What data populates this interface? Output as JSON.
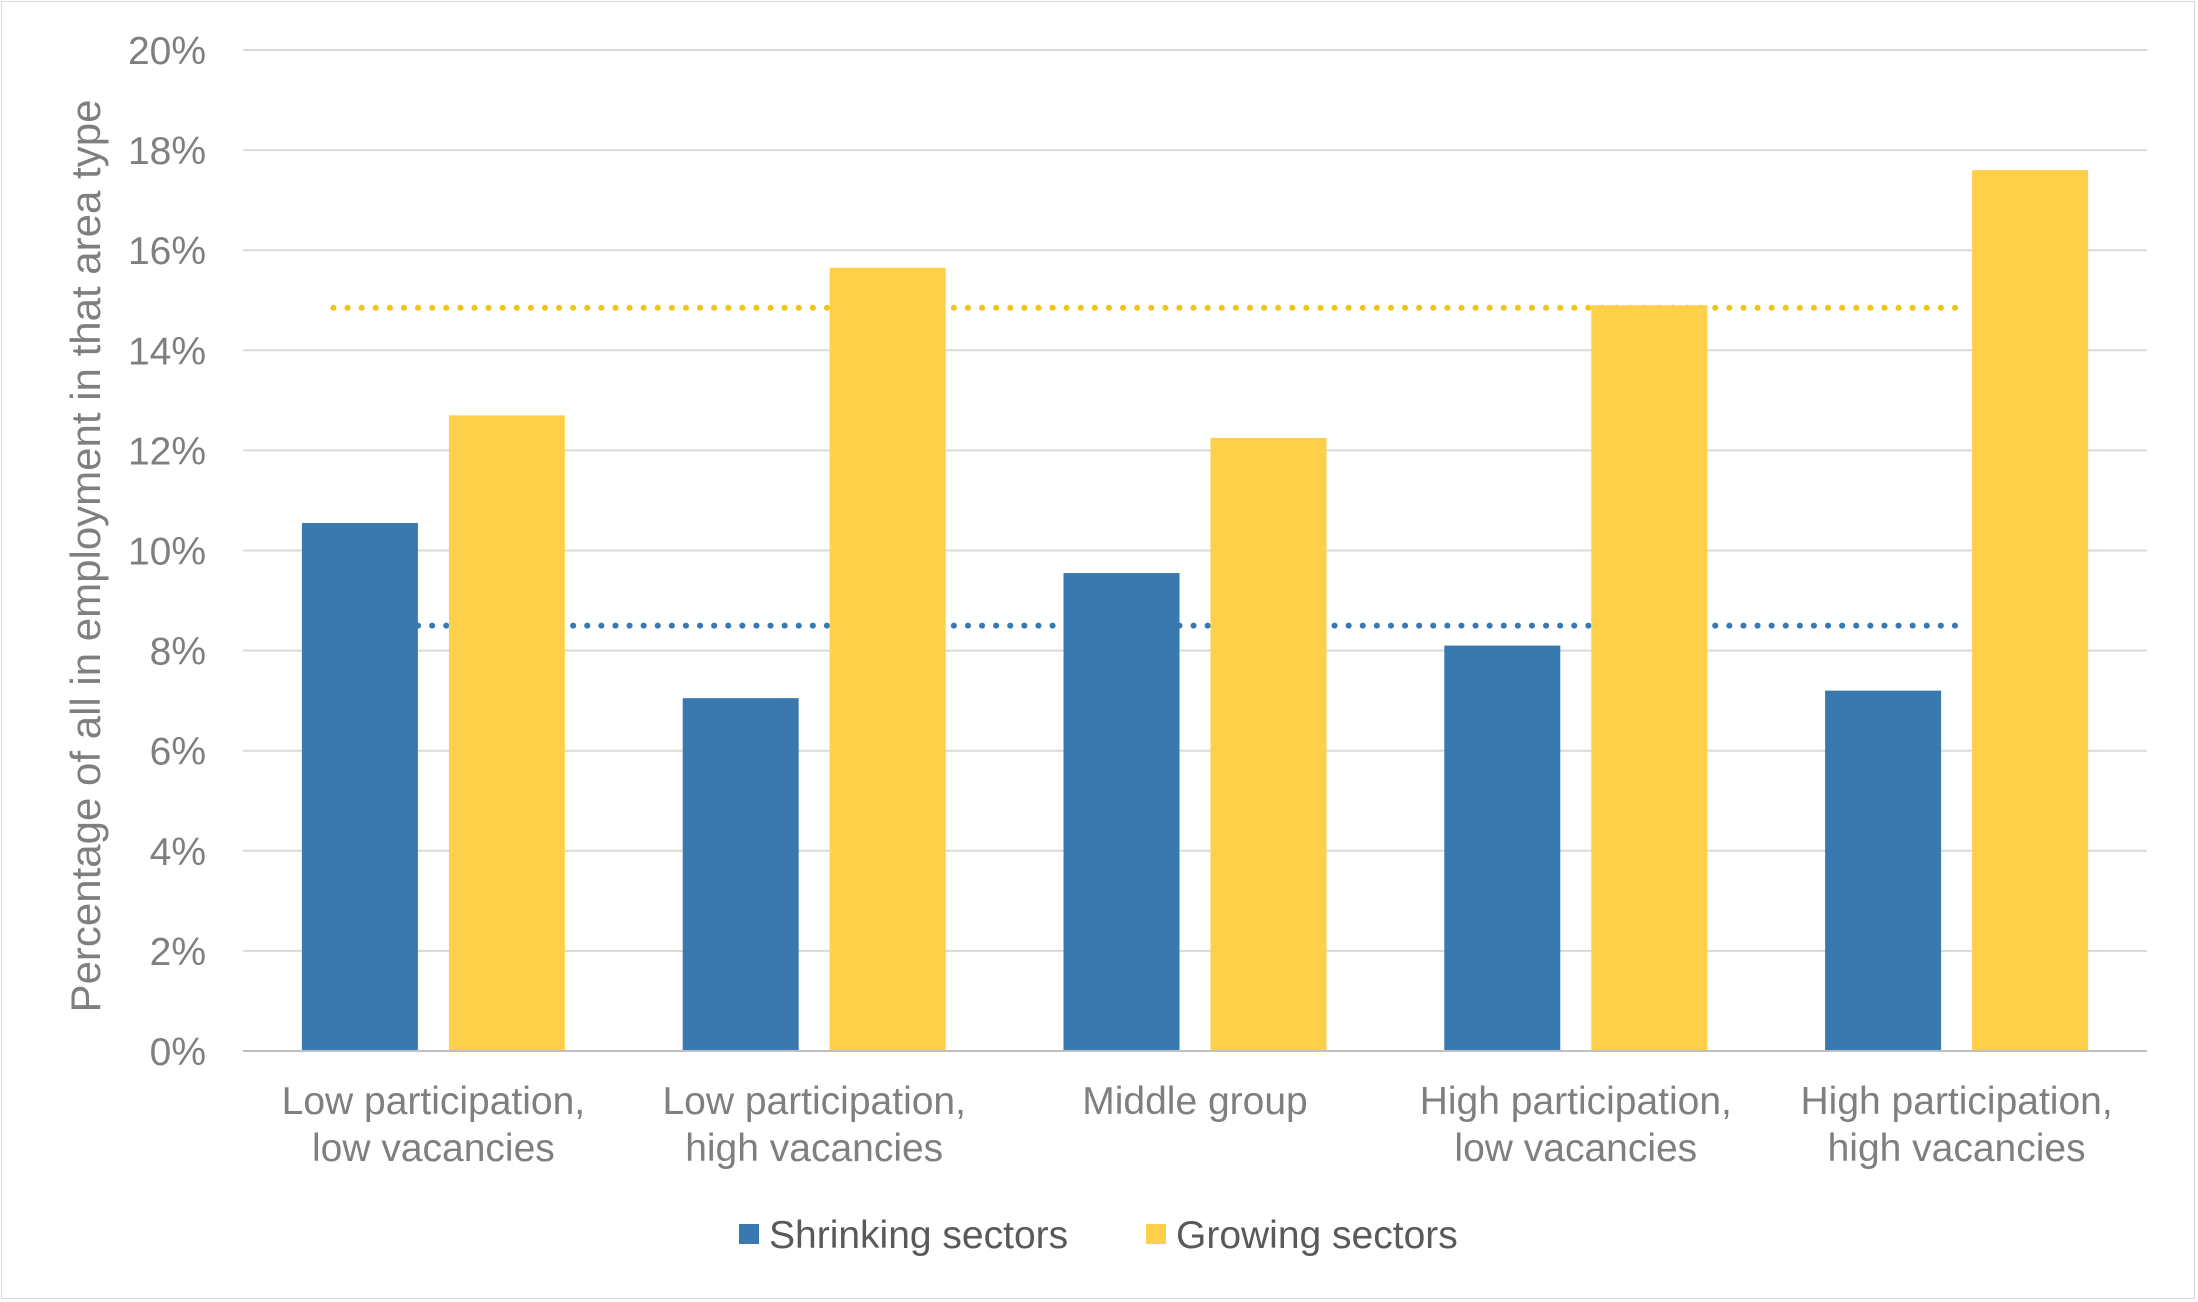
{
  "chart_data": {
    "type": "bar",
    "title": "",
    "xlabel": "",
    "ylabel": "Percentage of all in employment in that area type",
    "ylim": [
      0,
      20
    ],
    "y_ticks": [
      "0%",
      "2%",
      "4%",
      "6%",
      "8%",
      "10%",
      "12%",
      "14%",
      "16%",
      "18%",
      "20%"
    ],
    "grid": true,
    "legend_position": "bottom",
    "categories": [
      [
        "Low participation,",
        "low vacancies"
      ],
      [
        "Low participation,",
        "high vacancies"
      ],
      [
        "Middle group"
      ],
      [
        "High participation,",
        "low vacancies"
      ],
      [
        "High participation,",
        "high vacancies"
      ]
    ],
    "series": [
      {
        "name": "Shrinking sectors",
        "color": "#3a79b0",
        "values": [
          10.55,
          7.05,
          9.55,
          8.1,
          7.2
        ]
      },
      {
        "name": "Growing sectors",
        "color": "#fecf48",
        "values": [
          12.7,
          15.65,
          12.25,
          14.9,
          17.6
        ]
      }
    ],
    "reference_lines": [
      {
        "series": "Shrinking sectors",
        "value": 8.5,
        "color": "#3a79b0",
        "style": "dotted"
      },
      {
        "series": "Growing sectors",
        "value": 14.85,
        "color": "#f2c319",
        "style": "dotted"
      }
    ]
  }
}
